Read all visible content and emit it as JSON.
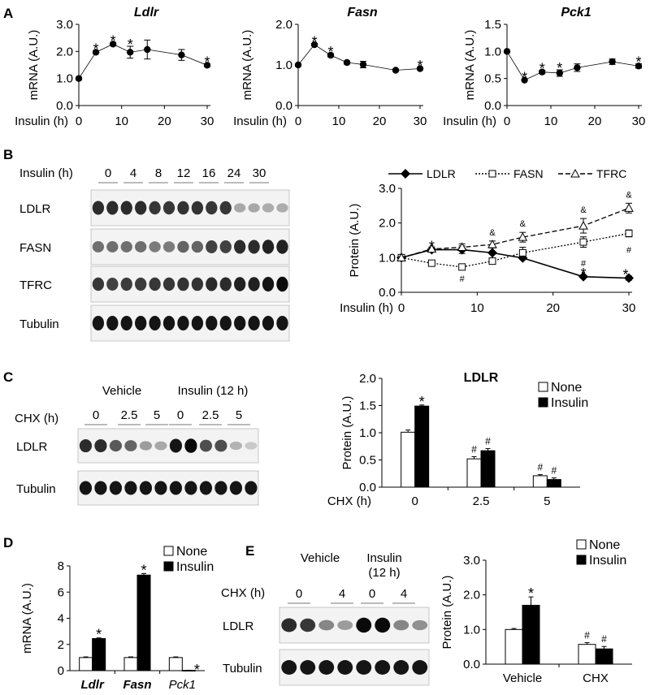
{
  "panels": {
    "A": "A",
    "B": "B",
    "C": "C",
    "D": "D",
    "E": "E"
  },
  "chart_data": [
    {
      "id": "A1",
      "type": "line",
      "title": "Ldlr",
      "title_italic": true,
      "xlabel": "Insulin (h)",
      "ylabel": "mRNA (A.U.)",
      "xlim": [
        0,
        30
      ],
      "ylim": [
        0,
        3
      ],
      "xticks": [
        "0",
        "10",
        "20",
        "30"
      ],
      "yticks": [
        "0.0",
        "1.0",
        "2.0",
        "3.0"
      ],
      "x": [
        0,
        4,
        8,
        12,
        16,
        24,
        30
      ],
      "y": [
        1.0,
        1.97,
        2.27,
        1.97,
        2.07,
        1.87,
        1.49
      ],
      "err": [
        0.05,
        0.05,
        0.05,
        0.22,
        0.35,
        0.2,
        0.05
      ],
      "sig": [
        "",
        "*",
        "*",
        "*",
        "",
        "",
        "*"
      ]
    },
    {
      "id": "A2",
      "type": "line",
      "title": "Fasn",
      "title_italic": true,
      "xlabel": "Insulin (h)",
      "ylabel": "mRNA (A.U.)",
      "xlim": [
        0,
        30
      ],
      "ylim": [
        0,
        2
      ],
      "xticks": [
        "0",
        "10",
        "20",
        "30"
      ],
      "yticks": [
        "0.0",
        "1.0",
        "2.0"
      ],
      "x": [
        0,
        4,
        8,
        12,
        16,
        24,
        30
      ],
      "y": [
        1.0,
        1.5,
        1.24,
        1.06,
        1.01,
        0.87,
        0.91
      ],
      "err": [
        0.03,
        0.03,
        0.04,
        0.04,
        0.08,
        0.03,
        0.03
      ],
      "sig": [
        "",
        "*",
        "*",
        "",
        "",
        "",
        "*"
      ]
    },
    {
      "id": "A3",
      "type": "line",
      "title": "Pck1",
      "title_italic": true,
      "xlabel": "Insulin (h)",
      "ylabel": "mRNA (A.U.)",
      "xlim": [
        0,
        30
      ],
      "ylim": [
        0,
        1.5
      ],
      "xticks": [
        "0",
        "10",
        "20",
        "30"
      ],
      "yticks": [
        "0.0",
        "0.5",
        "1.0",
        "1.5"
      ],
      "x": [
        0,
        4,
        8,
        12,
        16,
        24,
        30
      ],
      "y": [
        1.0,
        0.47,
        0.62,
        0.6,
        0.7,
        0.81,
        0.73
      ],
      "err": [
        0.02,
        0.02,
        0.03,
        0.06,
        0.07,
        0.05,
        0.04
      ],
      "sig": [
        "",
        "*",
        "*",
        "*",
        "",
        "",
        "*"
      ]
    },
    {
      "id": "B",
      "type": "line",
      "xlabel": "Insulin (h)",
      "ylabel": "Protein  (A.U.)",
      "xlim": [
        0,
        30
      ],
      "ylim": [
        0,
        3
      ],
      "xticks": [
        "0",
        "10",
        "20",
        "30"
      ],
      "yticks": [
        "0.0",
        "1.0",
        "2.0",
        "3.0"
      ],
      "x": [
        0,
        4,
        8,
        12,
        16,
        24,
        30
      ],
      "series": [
        {
          "name": "LDLR",
          "style": "solid",
          "marker": "diamond",
          "fill": "#000",
          "values": [
            1.0,
            1.23,
            1.23,
            1.14,
            0.99,
            0.45,
            0.41
          ],
          "err": [
            0.03,
            0.05,
            0.11,
            0.19,
            0.04,
            0.04,
            0.06
          ],
          "marks": [
            "",
            "*",
            "",
            "",
            "",
            "*",
            "*"
          ]
        },
        {
          "name": "FASN",
          "style": "dotted",
          "marker": "square",
          "fill": "#fff",
          "values": [
            1.0,
            0.84,
            0.73,
            0.9,
            1.14,
            1.45,
            1.7
          ],
          "err": [
            0.03,
            0.05,
            0.05,
            0.06,
            0.16,
            0.15,
            0.1
          ],
          "marks": [
            "",
            "",
            "#",
            "",
            "",
            "#",
            "#"
          ]
        },
        {
          "name": "TFRC",
          "style": "dashed",
          "marker": "triangle",
          "fill": "#fff",
          "values": [
            1.0,
            1.25,
            1.3,
            1.38,
            1.59,
            1.92,
            2.43
          ],
          "err": [
            0.03,
            0.06,
            0.1,
            0.1,
            0.14,
            0.21,
            0.14
          ],
          "marks": [
            "",
            "",
            "",
            "&",
            "&",
            "&",
            "&"
          ]
        }
      ]
    },
    {
      "id": "C",
      "type": "bar",
      "title": "LDLR",
      "xlabel": "CHX (h)",
      "ylabel": "Protein (A.U.)",
      "ylim": [
        0,
        2
      ],
      "yticks": [
        "0.0",
        "0.5",
        "1.0",
        "1.5",
        "2.0"
      ],
      "categories": [
        "0",
        "2.5",
        "5"
      ],
      "series": [
        {
          "name": "None",
          "color": "#fff",
          "values": [
            1.01,
            0.52,
            0.21
          ],
          "err": [
            0.04,
            0.04,
            0.02
          ],
          "marks": [
            "",
            "#",
            "#"
          ]
        },
        {
          "name": "Insulin",
          "color": "#000",
          "values": [
            1.49,
            0.67,
            0.14
          ],
          "err": [
            0.02,
            0.04,
            0.03
          ],
          "marks": [
            "*",
            "#",
            "#"
          ]
        }
      ]
    },
    {
      "id": "D",
      "type": "bar",
      "ylabel": "mRNA (A.U.)",
      "ylim": [
        0,
        8
      ],
      "yticks": [
        "0",
        "2",
        "4",
        "6",
        "8"
      ],
      "categories": [
        "Ldlr",
        "Fasn",
        "Pck1"
      ],
      "category_style": [
        "bold-italic",
        "bold-italic",
        "italic"
      ],
      "series": [
        {
          "name": "None",
          "color": "#fff",
          "values": [
            1.0,
            1.0,
            1.0
          ],
          "err": [
            0.05,
            0.05,
            0.05
          ],
          "marks": [
            "",
            "",
            ""
          ]
        },
        {
          "name": "Insulin",
          "color": "#000",
          "values": [
            2.45,
            7.3,
            0.02
          ],
          "err": [
            0.05,
            0.12,
            0.01
          ],
          "marks": [
            "*",
            "*",
            "*"
          ]
        }
      ]
    },
    {
      "id": "E",
      "type": "bar",
      "ylabel": "Protein (A.U.)",
      "ylim": [
        0,
        3
      ],
      "yticks": [
        "0.0",
        "1.0",
        "2.0",
        "3.0"
      ],
      "categories": [
        "Vehicle",
        "CHX"
      ],
      "series": [
        {
          "name": "None",
          "color": "#fff",
          "values": [
            1.0,
            0.57
          ],
          "err": [
            0.03,
            0.05
          ],
          "marks": [
            "",
            "#"
          ]
        },
        {
          "name": "Insulin",
          "color": "#000",
          "values": [
            1.7,
            0.44
          ],
          "err": [
            0.24,
            0.07
          ],
          "marks": [
            "*",
            "#"
          ]
        }
      ]
    }
  ],
  "blots": {
    "B": {
      "header_label": "Insulin (h)",
      "lanes": [
        "0",
        "4",
        "8",
        "12",
        "16",
        "24",
        "30"
      ],
      "rows": [
        {
          "label": "LDLR",
          "levels": [
            0.85,
            0.85,
            0.85,
            0.85,
            0.8,
            0.8,
            0.82,
            0.82,
            0.8,
            0.8,
            0.3,
            0.3,
            0.28,
            0.28
          ]
        },
        {
          "label": "FASN",
          "levels": [
            0.55,
            0.55,
            0.55,
            0.55,
            0.5,
            0.5,
            0.6,
            0.6,
            0.75,
            0.75,
            0.85,
            0.85,
            0.9,
            0.9
          ]
        },
        {
          "label": "TFRC",
          "levels": [
            0.8,
            0.75,
            0.78,
            0.78,
            0.8,
            0.8,
            0.82,
            0.82,
            0.85,
            0.85,
            0.9,
            0.9,
            0.95,
            1.0
          ]
        },
        {
          "label": "Tubulin",
          "levels": [
            0.95,
            0.95,
            0.95,
            0.95,
            0.95,
            0.95,
            0.95,
            0.95,
            0.95,
            0.95,
            0.95,
            0.95,
            0.95,
            0.95
          ]
        }
      ]
    },
    "C": {
      "groups": [
        "Vehicle",
        "Insulin (12 h)"
      ],
      "header_label": "CHX (h)",
      "lanes": [
        "0",
        "2.5",
        "5",
        "0",
        "2.5",
        "5"
      ],
      "rows": [
        {
          "label": "LDLR",
          "levels": [
            0.85,
            0.85,
            0.65,
            0.6,
            0.35,
            0.3,
            0.95,
            1.0,
            0.7,
            0.7,
            0.25,
            0.15
          ]
        },
        {
          "label": "Tubulin",
          "levels": [
            0.95,
            0.95,
            0.95,
            0.95,
            0.95,
            0.95,
            0.95,
            0.95,
            0.95,
            0.95,
            0.95,
            0.95
          ]
        }
      ]
    },
    "E": {
      "groups": [
        "Vehicle",
        "Insulin\n(12 h)"
      ],
      "header_label": "CHX (h)",
      "lanes": [
        "0",
        "4",
        "0",
        "4"
      ],
      "rows": [
        {
          "label": "LDLR",
          "levels": [
            0.85,
            0.8,
            0.45,
            0.35,
            1.0,
            1.0,
            0.45,
            0.4
          ]
        },
        {
          "label": "Tubulin",
          "levels": [
            0.95,
            0.95,
            0.95,
            0.95,
            0.95,
            0.95,
            0.95,
            0.95
          ]
        }
      ]
    }
  }
}
